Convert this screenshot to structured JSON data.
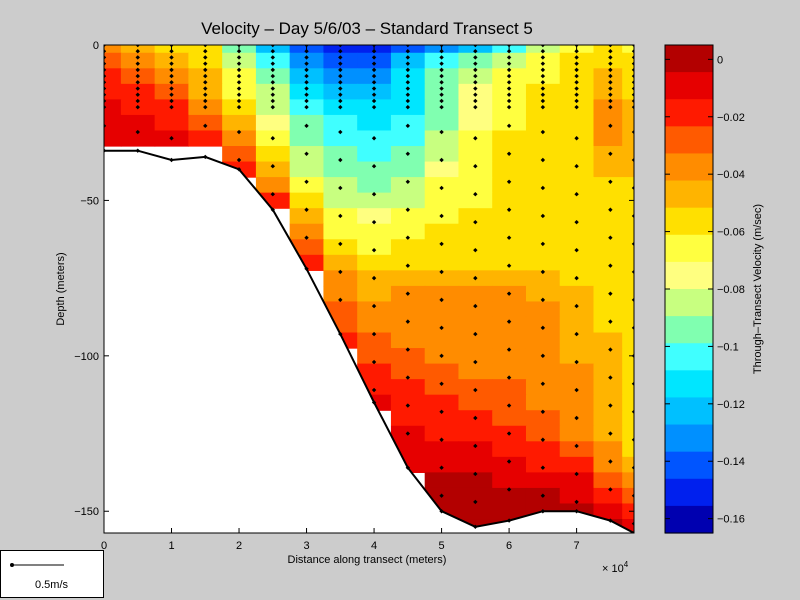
{
  "chart_data": {
    "type": "heatmap",
    "title": "Velocity – Day 5/6/03 – Standard Transect 5",
    "xlabel": "Distance along transect (meters)",
    "ylabel": "Depth (meters)",
    "xlim": [
      0,
      7.85
    ],
    "ylim": [
      -157,
      0
    ],
    "x_multiplier_label": "× 10",
    "x_multiplier_exponent": "4",
    "x_ticks": [
      "0",
      "1",
      "2",
      "3",
      "4",
      "5",
      "6",
      "7"
    ],
    "y_ticks": [
      "0",
      "−50",
      "−100",
      "−150"
    ],
    "colorbar": {
      "label": "Through–Transect Velocity (m/sec)",
      "range": [
        -0.165,
        0.005
      ],
      "ticks": [
        "0",
        "−0.02",
        "−0.04",
        "−0.06",
        "−0.08",
        "−0.1",
        "−0.12",
        "−0.14",
        "−0.16"
      ],
      "colors": [
        "#b30000",
        "#e60000",
        "#ff1a00",
        "#ff5a00",
        "#ff8c00",
        "#ffb400",
        "#ffe000",
        "#ffff40",
        "#ffff80",
        "#c8ff80",
        "#80ffb0",
        "#40ffff",
        "#00e6ff",
        "#00c0ff",
        "#0090ff",
        "#0055ff",
        "#0020ee",
        "#0000b0"
      ]
    },
    "bottom_profile": {
      "x": [
        0,
        0.5,
        1.0,
        1.5,
        2.0,
        2.5,
        3.0,
        3.5,
        4.0,
        4.5,
        5.0,
        5.5,
        6.0,
        6.5,
        7.0,
        7.5,
        7.85
      ],
      "depth": [
        -34,
        -34,
        -37,
        -36,
        -40,
        -53,
        -72,
        -93,
        -115,
        -136,
        -150,
        -155,
        -153,
        -150,
        -150,
        -153,
        -157
      ]
    },
    "station_x": [
      0,
      0.5,
      1.0,
      1.5,
      2.0,
      2.5,
      3.0,
      3.5,
      4.0,
      4.5,
      5.0,
      5.5,
      6.0,
      6.5,
      7.0,
      7.5,
      7.85
    ],
    "grid_x": [
      0,
      0.5,
      1.0,
      1.5,
      2.0,
      2.5,
      3.0,
      3.5,
      4.0,
      4.5,
      5.0,
      5.5,
      6.0,
      6.5,
      7.0,
      7.5,
      7.85
    ],
    "grid_depth": [
      0,
      -5,
      -10,
      -15,
      -20,
      -25,
      -30,
      -35,
      -40,
      -45,
      -50,
      -55,
      -60,
      -65,
      -70,
      -75,
      -80,
      -85,
      -90,
      -95,
      -100,
      -105,
      -110,
      -115,
      -120,
      -125,
      -130,
      -135,
      -140,
      -145,
      -150,
      -155
    ],
    "velocity": [
      [
        -0.04,
        -0.045,
        -0.06,
        -0.06,
        -0.09,
        -0.12,
        -0.14,
        -0.15,
        -0.15,
        -0.14,
        -0.13,
        -0.12,
        -0.1,
        -0.08,
        -0.07,
        -0.06,
        -0.07
      ],
      [
        -0.03,
        -0.035,
        -0.05,
        -0.055,
        -0.08,
        -0.1,
        -0.13,
        -0.14,
        -0.145,
        -0.12,
        -0.1,
        -0.09,
        -0.08,
        -0.07,
        -0.06,
        -0.06,
        -0.06
      ],
      [
        -0.02,
        -0.025,
        -0.04,
        -0.05,
        -0.07,
        -0.09,
        -0.12,
        -0.13,
        -0.13,
        -0.11,
        -0.09,
        -0.08,
        -0.07,
        -0.065,
        -0.06,
        -0.05,
        -0.06
      ],
      [
        -0.015,
        -0.02,
        -0.03,
        -0.045,
        -0.065,
        -0.085,
        -0.11,
        -0.12,
        -0.12,
        -0.11,
        -0.09,
        -0.075,
        -0.065,
        -0.06,
        -0.055,
        -0.045,
        -0.055
      ],
      [
        -0.01,
        -0.015,
        -0.02,
        -0.035,
        -0.06,
        -0.08,
        -0.1,
        -0.11,
        -0.115,
        -0.11,
        -0.095,
        -0.075,
        -0.065,
        -0.06,
        -0.055,
        -0.04,
        -0.05
      ],
      [
        -0.008,
        -0.01,
        -0.015,
        -0.025,
        -0.05,
        -0.075,
        -0.095,
        -0.105,
        -0.11,
        -0.105,
        -0.09,
        -0.075,
        -0.065,
        -0.06,
        -0.055,
        -0.04,
        -0.05
      ],
      [
        -0.005,
        -0.005,
        -0.008,
        -0.015,
        -0.04,
        -0.07,
        -0.09,
        -0.1,
        -0.105,
        -0.1,
        -0.085,
        -0.07,
        -0.06,
        -0.06,
        -0.055,
        -0.04,
        -0.05
      ],
      [
        null,
        null,
        null,
        null,
        -0.03,
        -0.06,
        -0.085,
        -0.095,
        -0.1,
        -0.095,
        -0.08,
        -0.065,
        -0.06,
        -0.06,
        -0.055,
        -0.045,
        -0.05
      ],
      [
        null,
        null,
        null,
        null,
        -0.02,
        -0.05,
        -0.08,
        -0.09,
        -0.095,
        -0.09,
        -0.075,
        -0.065,
        -0.06,
        -0.06,
        -0.055,
        -0.05,
        -0.05
      ],
      [
        null,
        null,
        null,
        null,
        null,
        -0.035,
        -0.07,
        -0.085,
        -0.09,
        -0.085,
        -0.07,
        -0.065,
        -0.06,
        -0.06,
        -0.06,
        -0.055,
        -0.055
      ],
      [
        null,
        null,
        null,
        null,
        null,
        -0.02,
        -0.06,
        -0.08,
        -0.085,
        -0.08,
        -0.07,
        -0.065,
        -0.06,
        -0.06,
        -0.06,
        -0.055,
        -0.055
      ],
      [
        null,
        null,
        null,
        null,
        null,
        null,
        -0.05,
        -0.07,
        -0.075,
        -0.07,
        -0.065,
        -0.06,
        -0.06,
        -0.06,
        -0.06,
        -0.055,
        -0.055
      ],
      [
        null,
        null,
        null,
        null,
        null,
        null,
        -0.04,
        -0.065,
        -0.07,
        -0.065,
        -0.06,
        -0.06,
        -0.06,
        -0.06,
        -0.06,
        -0.06,
        -0.06
      ],
      [
        null,
        null,
        null,
        null,
        null,
        null,
        -0.03,
        -0.055,
        -0.065,
        -0.06,
        -0.06,
        -0.06,
        -0.06,
        -0.06,
        -0.06,
        -0.06,
        -0.06
      ],
      [
        null,
        null,
        null,
        null,
        null,
        null,
        -0.02,
        -0.05,
        -0.06,
        -0.06,
        -0.055,
        -0.055,
        -0.055,
        -0.055,
        -0.06,
        -0.06,
        -0.06
      ],
      [
        null,
        null,
        null,
        null,
        null,
        null,
        null,
        -0.04,
        -0.05,
        -0.05,
        -0.05,
        -0.045,
        -0.05,
        -0.05,
        -0.055,
        -0.06,
        -0.06
      ],
      [
        null,
        null,
        null,
        null,
        null,
        null,
        null,
        -0.035,
        -0.045,
        -0.04,
        -0.04,
        -0.04,
        -0.04,
        -0.045,
        -0.05,
        -0.055,
        -0.06
      ],
      [
        null,
        null,
        null,
        null,
        null,
        null,
        null,
        -0.03,
        -0.04,
        -0.035,
        -0.035,
        -0.035,
        -0.035,
        -0.04,
        -0.045,
        -0.055,
        -0.06
      ],
      [
        null,
        null,
        null,
        null,
        null,
        null,
        null,
        -0.025,
        -0.035,
        -0.035,
        -0.035,
        -0.035,
        -0.035,
        -0.04,
        -0.045,
        -0.055,
        -0.06
      ],
      [
        null,
        null,
        null,
        null,
        null,
        null,
        null,
        -0.02,
        -0.03,
        -0.035,
        -0.035,
        -0.035,
        -0.035,
        -0.04,
        -0.045,
        -0.05,
        -0.06
      ],
      [
        null,
        null,
        null,
        null,
        null,
        null,
        null,
        null,
        -0.025,
        -0.03,
        -0.035,
        -0.035,
        -0.035,
        -0.04,
        -0.045,
        -0.05,
        -0.06
      ],
      [
        null,
        null,
        null,
        null,
        null,
        null,
        null,
        null,
        -0.02,
        -0.025,
        -0.03,
        -0.035,
        -0.035,
        -0.035,
        -0.04,
        -0.05,
        -0.06
      ],
      [
        null,
        null,
        null,
        null,
        null,
        null,
        null,
        null,
        -0.015,
        -0.02,
        -0.025,
        -0.03,
        -0.03,
        -0.035,
        -0.04,
        -0.05,
        -0.06
      ],
      [
        null,
        null,
        null,
        null,
        null,
        null,
        null,
        null,
        -0.01,
        -0.018,
        -0.022,
        -0.025,
        -0.03,
        -0.035,
        -0.04,
        -0.05,
        -0.06
      ],
      [
        null,
        null,
        null,
        null,
        null,
        null,
        null,
        null,
        null,
        -0.015,
        -0.018,
        -0.02,
        -0.025,
        -0.03,
        -0.04,
        -0.05,
        -0.06
      ],
      [
        null,
        null,
        null,
        null,
        null,
        null,
        null,
        null,
        null,
        -0.01,
        -0.015,
        -0.015,
        -0.02,
        -0.025,
        -0.035,
        -0.05,
        -0.06
      ],
      [
        null,
        null,
        null,
        null,
        null,
        null,
        null,
        null,
        null,
        -0.008,
        -0.01,
        -0.012,
        -0.015,
        -0.02,
        -0.03,
        -0.04,
        -0.055
      ],
      [
        null,
        null,
        null,
        null,
        null,
        null,
        null,
        null,
        null,
        -0.005,
        -0.006,
        -0.008,
        -0.01,
        -0.015,
        -0.02,
        -0.035,
        -0.05
      ],
      [
        null,
        null,
        null,
        null,
        null,
        null,
        null,
        null,
        null,
        null,
        -0.003,
        -0.004,
        -0.006,
        -0.008,
        -0.012,
        -0.025,
        -0.04
      ],
      [
        null,
        null,
        null,
        null,
        null,
        null,
        null,
        null,
        null,
        null,
        -0.002,
        -0.002,
        -0.004,
        -0.004,
        -0.006,
        -0.015,
        -0.03
      ],
      [
        null,
        null,
        null,
        null,
        null,
        null,
        null,
        null,
        null,
        null,
        -0.001,
        -0.001,
        -0.002,
        -0.002,
        -0.002,
        -0.008,
        -0.02
      ],
      [
        null,
        null,
        null,
        null,
        null,
        null,
        null,
        null,
        null,
        null,
        null,
        -0.001,
        -0.001,
        -0.001,
        -0.001,
        -0.004,
        -0.01
      ]
    ]
  },
  "scale": {
    "label": "0.5m/s"
  }
}
